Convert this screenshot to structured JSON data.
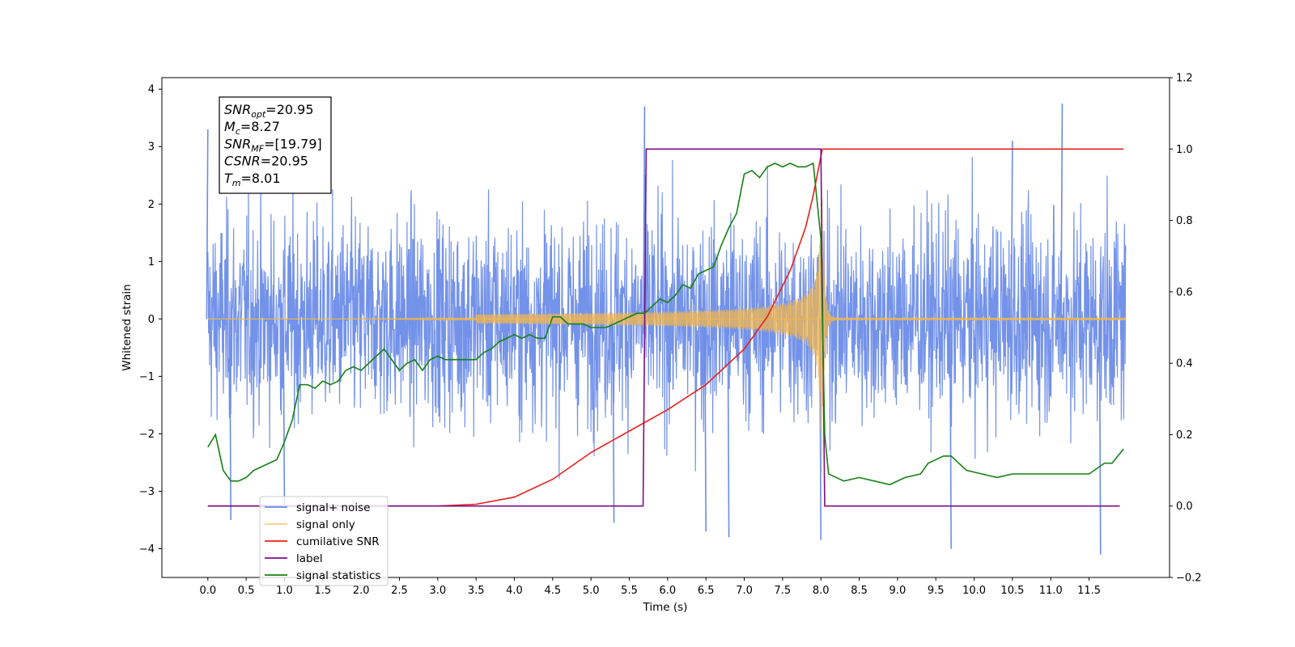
{
  "chart_data": {
    "type": "line",
    "xlabel": "Time (s)",
    "ylabel": "Whitened strain",
    "xlim": [
      -0.6,
      12.55
    ],
    "ylim": [
      -4.5,
      4.2
    ],
    "y2lim": [
      -0.2,
      1.2
    ],
    "x_ticks": [
      "0.0",
      "0.5",
      "1.0",
      "1.5",
      "2.0",
      "2.5",
      "3.0",
      "3.5",
      "4.0",
      "4.5",
      "5.0",
      "5.5",
      "6.0",
      "6.5",
      "7.0",
      "7.5",
      "8.0",
      "8.5",
      "9.0",
      "9.5",
      "10.0",
      "10.5",
      "11.0",
      "11.5"
    ],
    "y_ticks": [
      "4",
      "3",
      "2",
      "1",
      "0",
      "−1",
      "−2",
      "−3",
      "−4"
    ],
    "y2_ticks": [
      "1.2",
      "1.0",
      "0.8",
      "0.6",
      "0.4",
      "0.2",
      "0.0",
      "−0.2"
    ],
    "grid": false,
    "legend_position": "bottom-left",
    "info_box": {
      "lines": [
        {
          "sym": "SNR",
          "sub": "opt",
          "rest": "=20.95"
        },
        {
          "sym": "M",
          "sub": "c",
          "rest": "=8.27"
        },
        {
          "sym": "SNR",
          "sub": "MF",
          "rest": "=[19.79]"
        },
        {
          "sym": "CSNR",
          "sub": "",
          "rest": "=20.95"
        },
        {
          "sym": "T",
          "sub": "m",
          "rest": "=8.01"
        }
      ]
    },
    "noise_envelope_typical": 2.0,
    "noise_peaks": [
      [
        0.0,
        3.3
      ],
      [
        0.3,
        -3.5
      ],
      [
        1.0,
        -3.3
      ],
      [
        5.3,
        -3.55
      ],
      [
        5.7,
        3.7
      ],
      [
        6.5,
        -3.7
      ],
      [
        6.8,
        -3.8
      ],
      [
        8.0,
        -3.85
      ],
      [
        9.7,
        -4.0
      ],
      [
        10.5,
        3.1
      ],
      [
        11.15,
        3.75
      ],
      [
        11.65,
        -4.1
      ]
    ],
    "series": [
      {
        "name": "signal+ noise",
        "color": "#6b8ce8",
        "axis": "left",
        "kind": "noise",
        "x_range": [
          0.0,
          11.98
        ]
      },
      {
        "name": "signal only",
        "color": "#f2b64c",
        "axis": "left",
        "kind": "chirp",
        "x_range": [
          0.0,
          11.98
        ],
        "merger_time": 8.01
      },
      {
        "name": "cumilative SNR",
        "color": "#e8201c",
        "axis": "right",
        "x": [
          0.0,
          3.0,
          3.5,
          4.0,
          4.5,
          5.0,
          5.5,
          6.0,
          6.5,
          7.0,
          7.3,
          7.6,
          7.8,
          7.9,
          8.0,
          8.02,
          11.95
        ],
        "y": [
          0.0,
          0.0,
          0.005,
          0.025,
          0.075,
          0.15,
          0.21,
          0.27,
          0.34,
          0.44,
          0.53,
          0.66,
          0.78,
          0.87,
          0.98,
          1.0,
          1.0
        ]
      },
      {
        "name": "label",
        "color": "#7b0e86",
        "axis": "right",
        "x": [
          0.0,
          5.68,
          5.72,
          8.0,
          8.05,
          11.9
        ],
        "y": [
          0.0,
          0.0,
          1.0,
          1.0,
          0.0,
          0.0
        ]
      },
      {
        "name": "signal statistics",
        "color": "#168014",
        "axis": "right",
        "x": [
          0.0,
          0.1,
          0.2,
          0.3,
          0.4,
          0.5,
          0.6,
          0.7,
          0.8,
          0.9,
          1.0,
          1.1,
          1.2,
          1.3,
          1.4,
          1.5,
          1.6,
          1.7,
          1.8,
          1.9,
          2.0,
          2.1,
          2.2,
          2.3,
          2.4,
          2.5,
          2.6,
          2.7,
          2.8,
          2.9,
          3.0,
          3.1,
          3.2,
          3.3,
          3.4,
          3.5,
          3.6,
          3.7,
          3.8,
          3.9,
          4.0,
          4.1,
          4.2,
          4.3,
          4.4,
          4.5,
          4.6,
          4.7,
          4.8,
          4.9,
          5.0,
          5.1,
          5.2,
          5.3,
          5.4,
          5.5,
          5.6,
          5.7,
          5.8,
          5.9,
          6.0,
          6.1,
          6.2,
          6.3,
          6.4,
          6.5,
          6.6,
          6.7,
          6.8,
          6.9,
          7.0,
          7.1,
          7.2,
          7.3,
          7.4,
          7.5,
          7.6,
          7.7,
          7.8,
          7.9,
          8.0,
          8.05,
          8.1,
          8.3,
          8.5,
          8.7,
          8.9,
          9.1,
          9.3,
          9.4,
          9.5,
          9.6,
          9.7,
          9.9,
          10.1,
          10.3,
          10.5,
          10.7,
          10.9,
          11.1,
          11.3,
          11.5,
          11.7,
          11.8,
          11.95
        ],
        "y": [
          0.165,
          0.2,
          0.1,
          0.07,
          0.07,
          0.08,
          0.1,
          0.11,
          0.12,
          0.13,
          0.18,
          0.24,
          0.34,
          0.34,
          0.33,
          0.35,
          0.34,
          0.35,
          0.38,
          0.39,
          0.38,
          0.4,
          0.42,
          0.44,
          0.41,
          0.38,
          0.4,
          0.41,
          0.38,
          0.41,
          0.42,
          0.41,
          0.41,
          0.41,
          0.41,
          0.41,
          0.43,
          0.44,
          0.46,
          0.47,
          0.48,
          0.47,
          0.48,
          0.47,
          0.47,
          0.53,
          0.53,
          0.51,
          0.51,
          0.51,
          0.5,
          0.5,
          0.5,
          0.51,
          0.52,
          0.53,
          0.54,
          0.54,
          0.56,
          0.58,
          0.57,
          0.59,
          0.62,
          0.61,
          0.65,
          0.66,
          0.67,
          0.73,
          0.78,
          0.82,
          0.93,
          0.94,
          0.92,
          0.95,
          0.96,
          0.95,
          0.96,
          0.95,
          0.95,
          0.96,
          0.75,
          0.2,
          0.09,
          0.07,
          0.08,
          0.07,
          0.06,
          0.08,
          0.09,
          0.12,
          0.13,
          0.14,
          0.14,
          0.1,
          0.09,
          0.08,
          0.09,
          0.09,
          0.09,
          0.09,
          0.09,
          0.09,
          0.12,
          0.12,
          0.16
        ]
      }
    ]
  }
}
